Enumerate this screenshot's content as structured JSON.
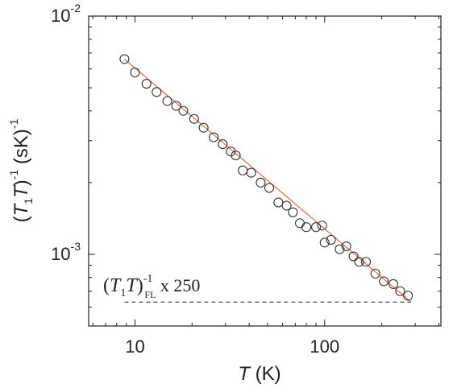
{
  "chart_data": {
    "type": "scatter",
    "x_scale": "log",
    "y_scale": "log",
    "xlim": [
      5.7,
      410
    ],
    "ylim": [
      0.0005,
      0.01
    ],
    "xlabel": {
      "italic": "T",
      "rest": " (K)"
    },
    "ylabel": {
      "open": "(",
      "T1": "T",
      "sub1": "1",
      "T2": "T",
      "close": ")",
      "sup": "-1",
      "rest": " (sK)",
      "sup2": "-1"
    },
    "x_ticks": [
      {
        "value": 10,
        "label": "10"
      },
      {
        "value": 100,
        "label": "100"
      }
    ],
    "y_ticks": [
      {
        "value": 0.01,
        "base": "10",
        "exp": "-2"
      },
      {
        "value": 0.001,
        "base": "10",
        "exp": "-3"
      }
    ],
    "series": [
      {
        "marker": "open-circle",
        "x": [
          8.8,
          10.0,
          11.5,
          13.0,
          14.8,
          16.5,
          18.0,
          20.5,
          23.0,
          26.0,
          29.0,
          32.0,
          34.0,
          37.0,
          41.0,
          46.0,
          51.0,
          57.0,
          63.0,
          68.0,
          74.0,
          80.0,
          90.0,
          97.0,
          100.0,
          108.0,
          120.0,
          130.0,
          142.0,
          152.0,
          165.0,
          185.0,
          205.0,
          230.0,
          250.0,
          275.0
        ],
        "y": [
          0.0066,
          0.0058,
          0.0052,
          0.0048,
          0.0044,
          0.0042,
          0.004,
          0.0037,
          0.0034,
          0.0031,
          0.0029,
          0.0027,
          0.0026,
          0.00225,
          0.0022,
          0.002,
          0.0019,
          0.00165,
          0.0016,
          0.0015,
          0.00135,
          0.0013,
          0.0013,
          0.00132,
          0.00112,
          0.00115,
          0.00105,
          0.00108,
          0.00098,
          0.00093,
          0.00093,
          0.00083,
          0.00077,
          0.00075,
          0.0007,
          0.00067
        ]
      }
    ],
    "fit_line": {
      "color": "#e8673c",
      "x": [
        8.8,
        285
      ],
      "y": [
        0.0066,
        0.00063
      ]
    },
    "fl_line": {
      "style": "dashed",
      "x": [
        8.8,
        285
      ],
      "y": [
        0.00063,
        0.00063
      ]
    },
    "annotation": {
      "open": "(",
      "T1": "T",
      "sub1": "1",
      "T2": "T",
      "close": ")",
      "sup": "-1",
      "sub": "FL",
      "rest": " x 250"
    }
  }
}
